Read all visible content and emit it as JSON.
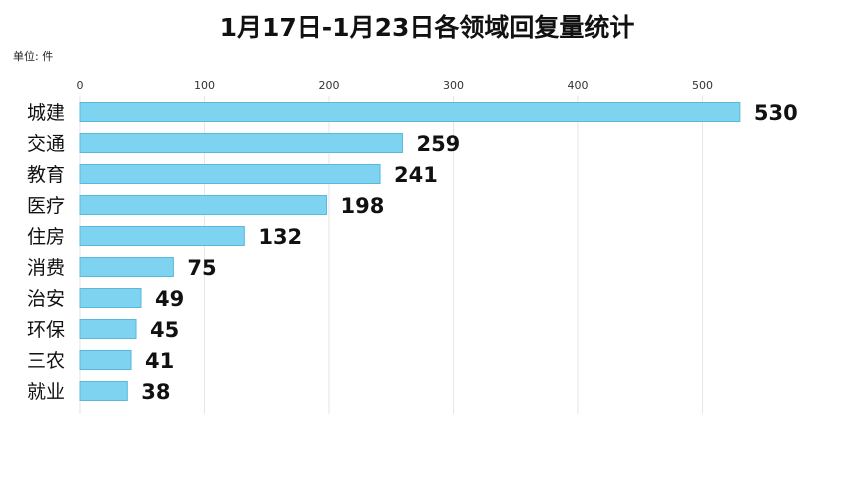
{
  "title": "1月17日-1月23日各领域回复量统计",
  "unit_label": "单位: 件",
  "colors": {
    "bar": "#7dd3f0",
    "bar_stroke": "#5bb8dc",
    "grid": "#e6e6e6",
    "text": "#111111"
  },
  "chart_data": {
    "type": "bar",
    "orientation": "horizontal",
    "title": "1月17日-1月23日各领域回复量统计",
    "unit": "单位: 件",
    "categories": [
      "城建",
      "交通",
      "教育",
      "医疗",
      "住房",
      "消费",
      "治安",
      "环保",
      "三农",
      "就业"
    ],
    "values": [
      530,
      259,
      241,
      198,
      132,
      75,
      49,
      45,
      41,
      38
    ],
    "xlim": [
      0,
      600
    ],
    "xticks": [
      0,
      100,
      200,
      300,
      400,
      500
    ],
    "x_axis_position": "top",
    "grid": true,
    "legend": "none",
    "data_labels": true
  }
}
